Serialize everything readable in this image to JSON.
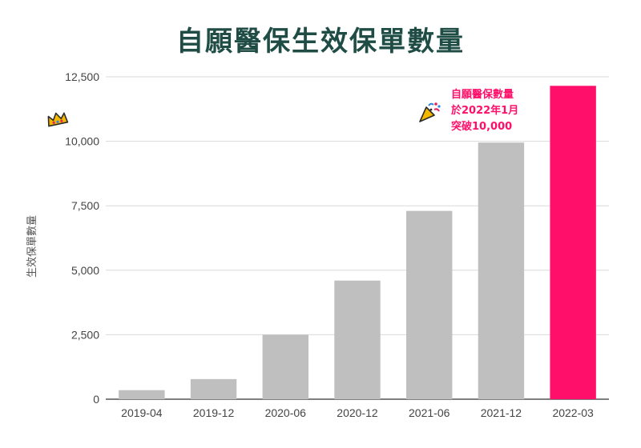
{
  "chart_data": {
    "type": "bar",
    "title": "自願醫保生效保單數量",
    "xlabel": "",
    "ylabel": "生效保單數量",
    "categories": [
      "2019-04",
      "2019-12",
      "2020-06",
      "2020-12",
      "2021-06",
      "2021-12",
      "2022-03"
    ],
    "values": [
      350,
      780,
      2500,
      4600,
      7300,
      9950,
      12150
    ],
    "ylim": [
      0,
      12500
    ],
    "yticks": [
      0,
      2500,
      5000,
      7500,
      10000,
      12500
    ],
    "ytick_labels": [
      "0",
      "2,500",
      "5,000",
      "7,500",
      "10,000",
      "12,500"
    ],
    "grid": true,
    "bar_color": "#bfbfbf",
    "highlight_index": 6,
    "highlight_color": "#ff0f6a",
    "annotation": {
      "lines": [
        "自願醫保數量",
        "於2022年1月",
        "突破10,000"
      ],
      "color": "#ff0f6a"
    },
    "icons": [
      "crown-icon",
      "party-popper-icon"
    ]
  }
}
